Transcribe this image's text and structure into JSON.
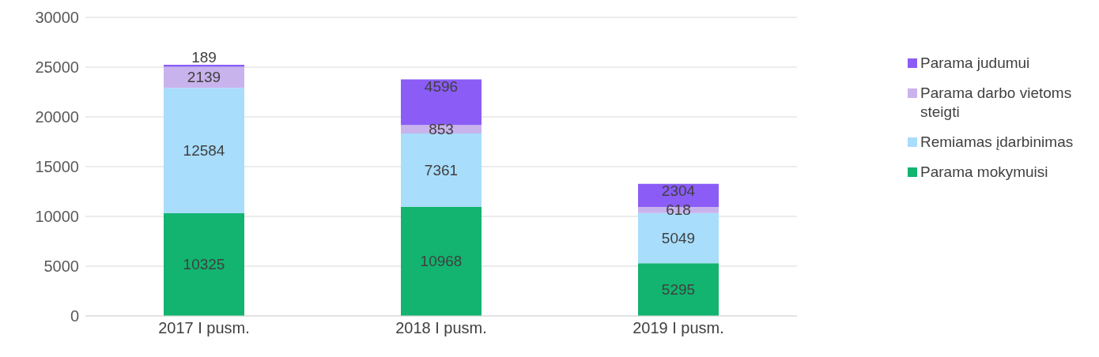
{
  "chart_data": {
    "type": "bar",
    "stacked": true,
    "categories": [
      "2017 I pusm.",
      "2018 I pusm.",
      "2019 I pusm."
    ],
    "series": [
      {
        "name": "Parama mokymuisi",
        "color": "#12b46f",
        "values": [
          10325,
          10968,
          5295
        ]
      },
      {
        "name": "Remiamas įdarbinimas",
        "color": "#a8ddfc",
        "values": [
          12584,
          7361,
          5049
        ]
      },
      {
        "name": "Parama darbo vietoms steigti",
        "color": "#c9b3ec",
        "values": [
          2139,
          853,
          618
        ]
      },
      {
        "name": "Parama judumui",
        "color": "#8b5cf6",
        "values": [
          189,
          4596,
          2304
        ]
      }
    ],
    "ylim": [
      0,
      30000
    ],
    "yticks": [
      0,
      5000,
      10000,
      15000,
      20000,
      25000,
      30000
    ],
    "grid": "y",
    "legend": "right",
    "data_labels": true
  }
}
